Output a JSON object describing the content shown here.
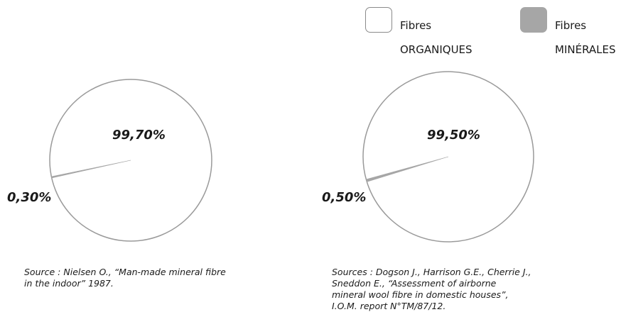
{
  "legend": [
    {
      "line1": "Fibres",
      "line2": "ORGANIQUES",
      "fill": "#ffffff",
      "stroke": "#8a8a8a"
    },
    {
      "line1": "Fibres",
      "line2": "MINÉRALES",
      "fill": "#a6a6a6",
      "stroke": "#a6a6a6"
    }
  ],
  "colors": {
    "organic": "#ffffff",
    "mineral": "#a6a6a6",
    "outline": "#9a9a9a"
  },
  "chart_data": [
    {
      "type": "pie",
      "slices": [
        {
          "label": "99,70%",
          "category": "Fibres ORGANIQUES",
          "value": 99.7
        },
        {
          "label": "0,30%",
          "category": "Fibres MINÉRALES",
          "value": 0.3
        }
      ],
      "source": "Source : Nielsen O., “Man-made mineral fibre\nin the indoor” 1987."
    },
    {
      "type": "pie",
      "slices": [
        {
          "label": "99,50%",
          "category": "Fibres ORGANIQUES",
          "value": 99.5
        },
        {
          "label": "0,50%",
          "category": "Fibres MINÉRALES",
          "value": 0.5
        }
      ],
      "source": "Sources : Dogson J., Harrison G.E., Cherrie J.,\nSneddon E., “Assessment of airborne\nmineral wool fibre in domestic houses”,\nI.O.M. report N°TM/87/12."
    }
  ]
}
